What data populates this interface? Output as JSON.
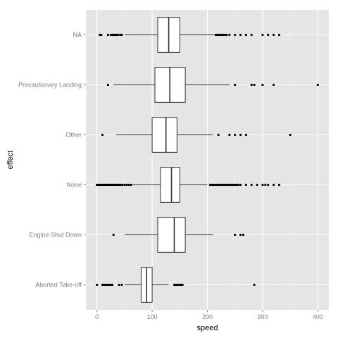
{
  "chart_data": {
    "type": "boxplot",
    "orientation": "horizontal",
    "xlabel": "speed",
    "ylabel": "effect",
    "xlim": [
      -20,
      420
    ],
    "xticks": [
      0,
      100,
      200,
      300,
      400
    ],
    "grid": true,
    "panel_background": "#e5e5e5",
    "grid_color": "#ffffff",
    "categories": [
      "NA",
      "Precautionary Landing",
      "Other",
      "None",
      "Engine Shut Down",
      "Aborted Take-off"
    ],
    "boxes": [
      {
        "category": "NA",
        "whisker_low": 50,
        "q1": 110,
        "median": 130,
        "q3": 150,
        "whisker_high": 212,
        "outliers": [
          5,
          8,
          20,
          25,
          28,
          30,
          32,
          35,
          38,
          42,
          45,
          215,
          218,
          220,
          223,
          226,
          229,
          232,
          235,
          240,
          250,
          260,
          270,
          280,
          300,
          310,
          320,
          330
        ]
      },
      {
        "category": "Precautionary Landing",
        "whisker_low": 30,
        "q1": 105,
        "median": 132,
        "q3": 160,
        "whisker_high": 240,
        "outliers": [
          20,
          250,
          280,
          285,
          300,
          320,
          400
        ]
      },
      {
        "category": "Other",
        "whisker_low": 35,
        "q1": 100,
        "median": 125,
        "q3": 145,
        "whisker_high": 210,
        "outliers": [
          10,
          220,
          240,
          250,
          260,
          270,
          350
        ]
      },
      {
        "category": "None",
        "whisker_low": 65,
        "q1": 115,
        "median": 135,
        "q3": 150,
        "whisker_high": 200,
        "outliers": [
          0,
          2,
          4,
          6,
          8,
          10,
          12,
          14,
          16,
          18,
          20,
          22,
          24,
          26,
          28,
          30,
          32,
          34,
          36,
          38,
          40,
          43,
          46,
          50,
          54,
          58,
          62,
          205,
          208,
          211,
          214,
          217,
          220,
          223,
          226,
          229,
          232,
          235,
          238,
          241,
          244,
          247,
          250,
          253,
          256,
          260,
          270,
          280,
          290,
          300,
          305,
          310,
          320,
          330
        ]
      },
      {
        "category": "Engine Shut Down",
        "whisker_low": 50,
        "q1": 110,
        "median": 140,
        "q3": 160,
        "whisker_high": 210,
        "outliers": [
          30,
          250,
          260,
          265
        ]
      },
      {
        "category": "Aborted Take-off",
        "whisker_low": 50,
        "q1": 80,
        "median": 90,
        "q3": 100,
        "whisker_high": 130,
        "outliers": [
          0,
          10,
          13,
          16,
          19,
          22,
          25,
          28,
          40,
          45,
          140,
          143,
          146,
          149,
          152,
          155,
          285
        ]
      }
    ]
  }
}
